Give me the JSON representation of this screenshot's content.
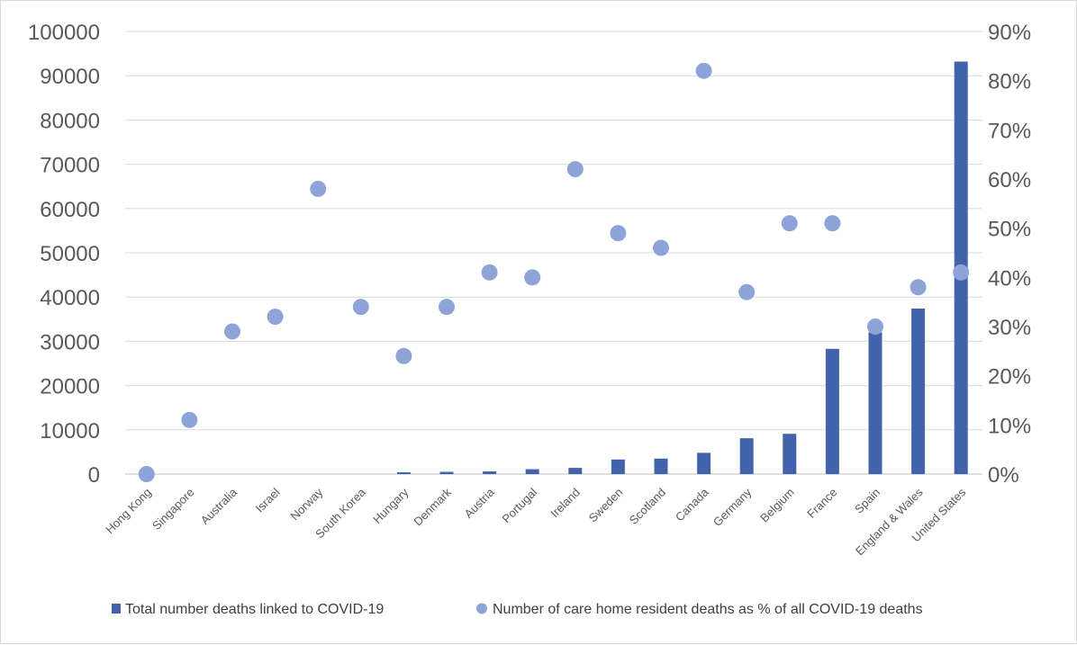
{
  "chart_data": {
    "type": "bar",
    "categories": [
      "Hong Kong",
      "Singapore",
      "Australia",
      "Israel",
      "Norway",
      "South Korea",
      "Hungary",
      "Denmark",
      "Austria",
      "Portugal",
      "Ireland",
      "Sweden",
      "Scotland",
      "Canada",
      "Germany",
      "Belgium",
      "France",
      "Spain",
      "England & Wales",
      "United States"
    ],
    "series": [
      {
        "name": "Total number deaths linked to COVID-19",
        "type": "bar",
        "axis": "left",
        "color": "#4263ac",
        "values": [
          0,
          0,
          0,
          0,
          0,
          0,
          400,
          500,
          600,
          1100,
          1400,
          3300,
          3500,
          4800,
          8100,
          9100,
          28300,
          32000,
          37400,
          93200
        ]
      },
      {
        "name": "Number of care home resident deaths as % of all COVID-19 deaths",
        "type": "scatter",
        "axis": "right",
        "color": "#8ea4d8",
        "values": [
          0,
          11,
          29,
          32,
          58,
          34,
          24,
          34,
          41,
          40,
          62,
          49,
          46,
          82,
          37,
          51,
          51,
          30,
          38,
          41
        ]
      }
    ],
    "y_left": {
      "min": 0,
      "max": 100000,
      "ticks": [
        "100000",
        "90000",
        "80000",
        "70000",
        "60000",
        "50000",
        "40000",
        "30000",
        "20000",
        "10000",
        "0"
      ]
    },
    "y_right": {
      "min": 0,
      "max": 90,
      "ticks": [
        "90%",
        "80%",
        "70%",
        "60%",
        "50%",
        "40%",
        "30%",
        "20%",
        "10%",
        "0%"
      ]
    },
    "grid": true,
    "legend_position": "bottom"
  }
}
